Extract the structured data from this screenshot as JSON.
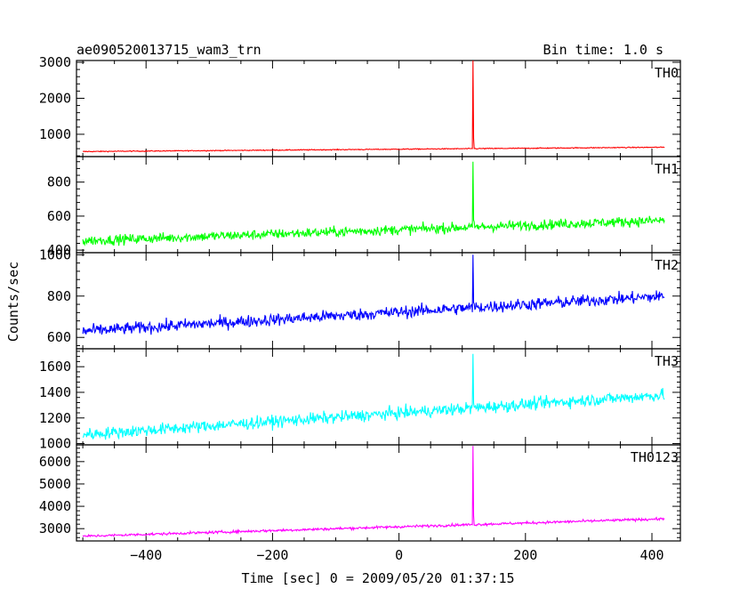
{
  "chart_data": {
    "type": "line",
    "title": "ae090520013715_wam3_trn",
    "bin_label": "Bin time: 1.0 s",
    "xlabel": "Time [sec] 0 = 2009/05/20 01:37:15",
    "ylabel": "Counts/sec",
    "xlim": [
      -510,
      445
    ],
    "x_ticks": [
      -400,
      -200,
      0,
      200,
      400
    ],
    "x_tick_labels": [
      "−400",
      "−200",
      "0",
      "200",
      "400"
    ],
    "x_range": [
      -500,
      420
    ],
    "spike_x": 117,
    "panels": [
      {
        "name": "TH0",
        "color": "#ff0000",
        "ylim": [
          380,
          3050
        ],
        "y_ticks": [
          1000,
          2000,
          3000
        ],
        "y_tick_labels": [
          "1000",
          "2000",
          "3000"
        ],
        "y_start": 520,
        "y_end": 640,
        "noise": 12,
        "spike_peak": 3050
      },
      {
        "name": "TH1",
        "color": "#00ff00",
        "ylim": [
          385,
          950
        ],
        "y_ticks": [
          400,
          600,
          800
        ],
        "y_tick_labels": [
          "400",
          "600",
          "800"
        ],
        "y_start": 455,
        "y_end": 575,
        "noise": 28,
        "spike_peak": 920
      },
      {
        "name": "TH2",
        "color": "#0000ff",
        "ylim": [
          545,
          1010
        ],
        "y_ticks": [
          600,
          800,
          1000
        ],
        "y_tick_labels": [
          "600",
          "800",
          "1000"
        ],
        "y_start": 630,
        "y_end": 800,
        "noise": 28,
        "spike_peak": 1000
      },
      {
        "name": "TH3",
        "color": "#00ffff",
        "ylim": [
          990,
          1740
        ],
        "y_ticks": [
          1000,
          1200,
          1400,
          1600
        ],
        "y_tick_labels": [
          "1000",
          "1200",
          "1400",
          "1600"
        ],
        "y_start": 1070,
        "y_end": 1380,
        "noise": 45,
        "spike_peak": 1700
      },
      {
        "name": "TH0123",
        "color": "#ff00ff",
        "ylim": [
          2450,
          6750
        ],
        "y_ticks": [
          3000,
          4000,
          5000,
          6000
        ],
        "y_tick_labels": [
          "3000",
          "4000",
          "5000",
          "6000"
        ],
        "y_start": 2660,
        "y_end": 3440,
        "noise": 55,
        "spike_peak": 6700
      }
    ]
  }
}
